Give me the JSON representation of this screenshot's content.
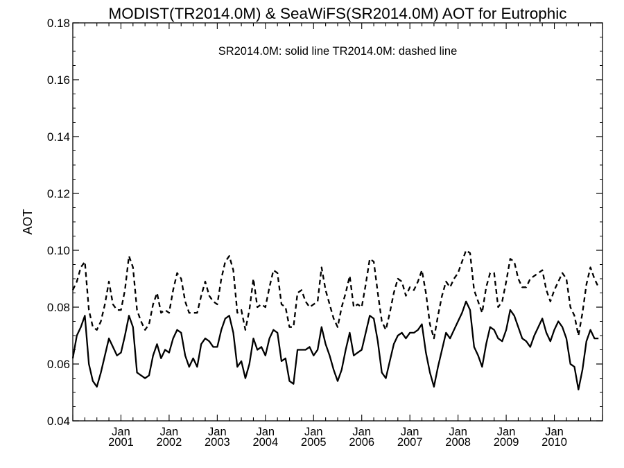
{
  "chart_data": {
    "type": "line",
    "title": "MODIST(TR2014.0M) & SeaWiFS(SR2014.0M)  AOT for Eutrophic",
    "ylabel": "AOT",
    "xlabel": "",
    "annotation": "SR2014.0M: solid line   TR2014.0M: dashed line",
    "ylim": [
      0.04,
      0.18
    ],
    "yticks": [
      "0.04",
      "0.06",
      "0.08",
      "0.10",
      "0.12",
      "0.14",
      "0.16",
      "0.18"
    ],
    "xlim": [
      "2000-01",
      "2010-12"
    ],
    "xticks": [
      {
        "month": "Jan",
        "year": "2001",
        "date": "2001-01"
      },
      {
        "month": "Jan",
        "year": "2002",
        "date": "2002-01"
      },
      {
        "month": "Jan",
        "year": "2003",
        "date": "2003-01"
      },
      {
        "month": "Jan",
        "year": "2004",
        "date": "2004-01"
      },
      {
        "month": "Jan",
        "year": "2005",
        "date": "2005-01"
      },
      {
        "month": "Jan",
        "year": "2006",
        "date": "2006-01"
      },
      {
        "month": "Jan",
        "year": "2007",
        "date": "2007-01"
      },
      {
        "month": "Jan",
        "year": "2008",
        "date": "2008-01"
      },
      {
        "month": "Jan",
        "year": "2009",
        "date": "2009-01"
      },
      {
        "month": "Jan",
        "year": "2010",
        "date": "2010-01"
      }
    ],
    "grid": false,
    "series": [
      {
        "name": "SR2014.0M",
        "style": "solid",
        "x": [
          "2000-01",
          "2000-02",
          "2000-03",
          "2000-04",
          "2000-05",
          "2000-06",
          "2000-07",
          "2000-08",
          "2000-09",
          "2000-10",
          "2000-11",
          "2000-12",
          "2001-01",
          "2001-02",
          "2001-03",
          "2001-04",
          "2001-05",
          "2001-06",
          "2001-07",
          "2001-08",
          "2001-09",
          "2001-10",
          "2001-11",
          "2001-12",
          "2002-01",
          "2002-02",
          "2002-03",
          "2002-04",
          "2002-05",
          "2002-06",
          "2002-07",
          "2002-08",
          "2002-09",
          "2002-10",
          "2002-11",
          "2002-12",
          "2003-01",
          "2003-02",
          "2003-03",
          "2003-04",
          "2003-05",
          "2003-06",
          "2003-07",
          "2003-08",
          "2003-09",
          "2003-10",
          "2003-11",
          "2003-12",
          "2004-01",
          "2004-02",
          "2004-03",
          "2004-04",
          "2004-05",
          "2004-06",
          "2004-07",
          "2004-08",
          "2004-09",
          "2004-10",
          "2004-11",
          "2004-12",
          "2005-01",
          "2005-02",
          "2005-03",
          "2005-04",
          "2005-05",
          "2005-06",
          "2005-07",
          "2005-08",
          "2005-09",
          "2005-10",
          "2005-11",
          "2005-12",
          "2006-01",
          "2006-02",
          "2006-03",
          "2006-04",
          "2006-05",
          "2006-06",
          "2006-07",
          "2006-08",
          "2006-09",
          "2006-10",
          "2006-11",
          "2006-12",
          "2007-01",
          "2007-02",
          "2007-03",
          "2007-04",
          "2007-05",
          "2007-06",
          "2007-07",
          "2007-08",
          "2007-09",
          "2007-10",
          "2007-11",
          "2007-12",
          "2008-01",
          "2008-02",
          "2008-03",
          "2008-04",
          "2008-05",
          "2008-06",
          "2008-07",
          "2008-08",
          "2008-09",
          "2008-10",
          "2008-11",
          "2008-12",
          "2009-01",
          "2009-02",
          "2009-03",
          "2009-04",
          "2009-05",
          "2009-06",
          "2009-07",
          "2009-08",
          "2009-09",
          "2009-10",
          "2009-11",
          "2009-12",
          "2010-01",
          "2010-02",
          "2010-03",
          "2010-04",
          "2010-05",
          "2010-06",
          "2010-07",
          "2010-08",
          "2010-09",
          "2010-10",
          "2010-11",
          "2010-12"
        ],
        "y": [
          0.062,
          0.07,
          0.073,
          0.077,
          0.06,
          0.054,
          0.052,
          0.057,
          0.063,
          0.069,
          0.066,
          0.063,
          0.064,
          0.07,
          0.077,
          0.073,
          0.057,
          0.056,
          0.055,
          0.056,
          0.063,
          0.067,
          0.062,
          0.065,
          0.064,
          0.069,
          0.072,
          0.071,
          0.063,
          0.059,
          0.062,
          0.059,
          0.067,
          0.069,
          0.068,
          0.066,
          0.066,
          0.072,
          0.076,
          0.077,
          0.071,
          0.059,
          0.061,
          0.055,
          0.06,
          0.069,
          0.065,
          0.066,
          0.063,
          0.069,
          0.072,
          0.071,
          0.061,
          0.062,
          0.054,
          0.053,
          0.065,
          0.065,
          0.065,
          0.066,
          0.063,
          0.065,
          0.073,
          0.067,
          0.063,
          0.058,
          0.054,
          0.058,
          0.065,
          0.071,
          0.063,
          0.064,
          0.065,
          0.071,
          0.077,
          0.076,
          0.068,
          0.057,
          0.055,
          0.061,
          0.067,
          0.07,
          0.071,
          0.069,
          0.071,
          0.071,
          0.072,
          0.074,
          0.064,
          0.057,
          0.052,
          0.059,
          0.065,
          0.071,
          0.069,
          0.072,
          0.075,
          0.078,
          0.082,
          0.079,
          0.066,
          0.063,
          0.059,
          0.067,
          0.073,
          0.072,
          0.069,
          0.068,
          0.072,
          0.079,
          0.077,
          0.073,
          0.069,
          0.068,
          0.066,
          0.07,
          0.073,
          0.076,
          0.071,
          0.068,
          0.072,
          0.075,
          0.073,
          0.069,
          0.06,
          0.059,
          0.051,
          0.058,
          0.068,
          0.072,
          0.069,
          0.069
        ]
      },
      {
        "name": "TR2014.0M",
        "style": "dashed",
        "x": [
          "2000-01",
          "2000-02",
          "2000-03",
          "2000-04",
          "2000-05",
          "2000-06",
          "2000-07",
          "2000-08",
          "2000-09",
          "2000-10",
          "2000-11",
          "2000-12",
          "2001-01",
          "2001-02",
          "2001-03",
          "2001-04",
          "2001-05",
          "2001-06",
          "2001-07",
          "2001-08",
          "2001-09",
          "2001-10",
          "2001-11",
          "2001-12",
          "2002-01",
          "2002-02",
          "2002-03",
          "2002-04",
          "2002-05",
          "2002-06",
          "2002-07",
          "2002-08",
          "2002-09",
          "2002-10",
          "2002-11",
          "2002-12",
          "2003-01",
          "2003-02",
          "2003-03",
          "2003-04",
          "2003-05",
          "2003-06",
          "2003-07",
          "2003-08",
          "2003-09",
          "2003-10",
          "2003-11",
          "2003-12",
          "2004-01",
          "2004-02",
          "2004-03",
          "2004-04",
          "2004-05",
          "2004-06",
          "2004-07",
          "2004-08",
          "2004-09",
          "2004-10",
          "2004-11",
          "2004-12",
          "2005-01",
          "2005-02",
          "2005-03",
          "2005-04",
          "2005-05",
          "2005-06",
          "2005-07",
          "2005-08",
          "2005-09",
          "2005-10",
          "2005-11",
          "2005-12",
          "2006-01",
          "2006-02",
          "2006-03",
          "2006-04",
          "2006-05",
          "2006-06",
          "2006-07",
          "2006-08",
          "2006-09",
          "2006-10",
          "2006-11",
          "2006-12",
          "2007-01",
          "2007-02",
          "2007-03",
          "2007-04",
          "2007-05",
          "2007-06",
          "2007-07",
          "2007-08",
          "2007-09",
          "2007-10",
          "2007-11",
          "2007-12",
          "2008-01",
          "2008-02",
          "2008-03",
          "2008-04",
          "2008-05",
          "2008-06",
          "2008-07",
          "2008-08",
          "2008-09",
          "2008-10",
          "2008-11",
          "2008-12",
          "2009-01",
          "2009-02",
          "2009-03",
          "2009-04",
          "2009-05",
          "2009-06",
          "2009-07",
          "2009-08",
          "2009-09",
          "2009-10",
          "2009-11",
          "2009-12",
          "2010-01",
          "2010-02",
          "2010-03",
          "2010-04",
          "2010-05",
          "2010-06",
          "2010-07",
          "2010-08",
          "2010-09",
          "2010-10",
          "2010-11",
          "2010-12"
        ],
        "y": [
          0.086,
          0.089,
          0.094,
          0.096,
          0.079,
          0.073,
          0.072,
          0.075,
          0.081,
          0.089,
          0.081,
          0.079,
          0.079,
          0.086,
          0.098,
          0.094,
          0.079,
          0.075,
          0.072,
          0.074,
          0.081,
          0.085,
          0.078,
          0.079,
          0.078,
          0.086,
          0.092,
          0.09,
          0.082,
          0.078,
          0.078,
          0.078,
          0.084,
          0.089,
          0.084,
          0.082,
          0.081,
          0.09,
          0.096,
          0.098,
          0.093,
          0.078,
          0.079,
          0.072,
          0.079,
          0.09,
          0.08,
          0.081,
          0.08,
          0.087,
          0.093,
          0.092,
          0.081,
          0.08,
          0.073,
          0.073,
          0.085,
          0.086,
          0.082,
          0.08,
          0.081,
          0.082,
          0.094,
          0.086,
          0.081,
          0.076,
          0.073,
          0.08,
          0.085,
          0.091,
          0.08,
          0.081,
          0.08,
          0.088,
          0.097,
          0.096,
          0.085,
          0.075,
          0.072,
          0.078,
          0.085,
          0.09,
          0.089,
          0.084,
          0.087,
          0.086,
          0.089,
          0.093,
          0.085,
          0.074,
          0.069,
          0.077,
          0.084,
          0.089,
          0.087,
          0.09,
          0.092,
          0.096,
          0.1,
          0.099,
          0.086,
          0.082,
          0.078,
          0.087,
          0.092,
          0.092,
          0.08,
          0.082,
          0.089,
          0.097,
          0.096,
          0.09,
          0.087,
          0.087,
          0.09,
          0.091,
          0.092,
          0.093,
          0.086,
          0.082,
          0.086,
          0.089,
          0.092,
          0.09,
          0.08,
          0.077,
          0.07,
          0.078,
          0.088,
          0.094,
          0.09,
          0.087
        ]
      }
    ]
  }
}
